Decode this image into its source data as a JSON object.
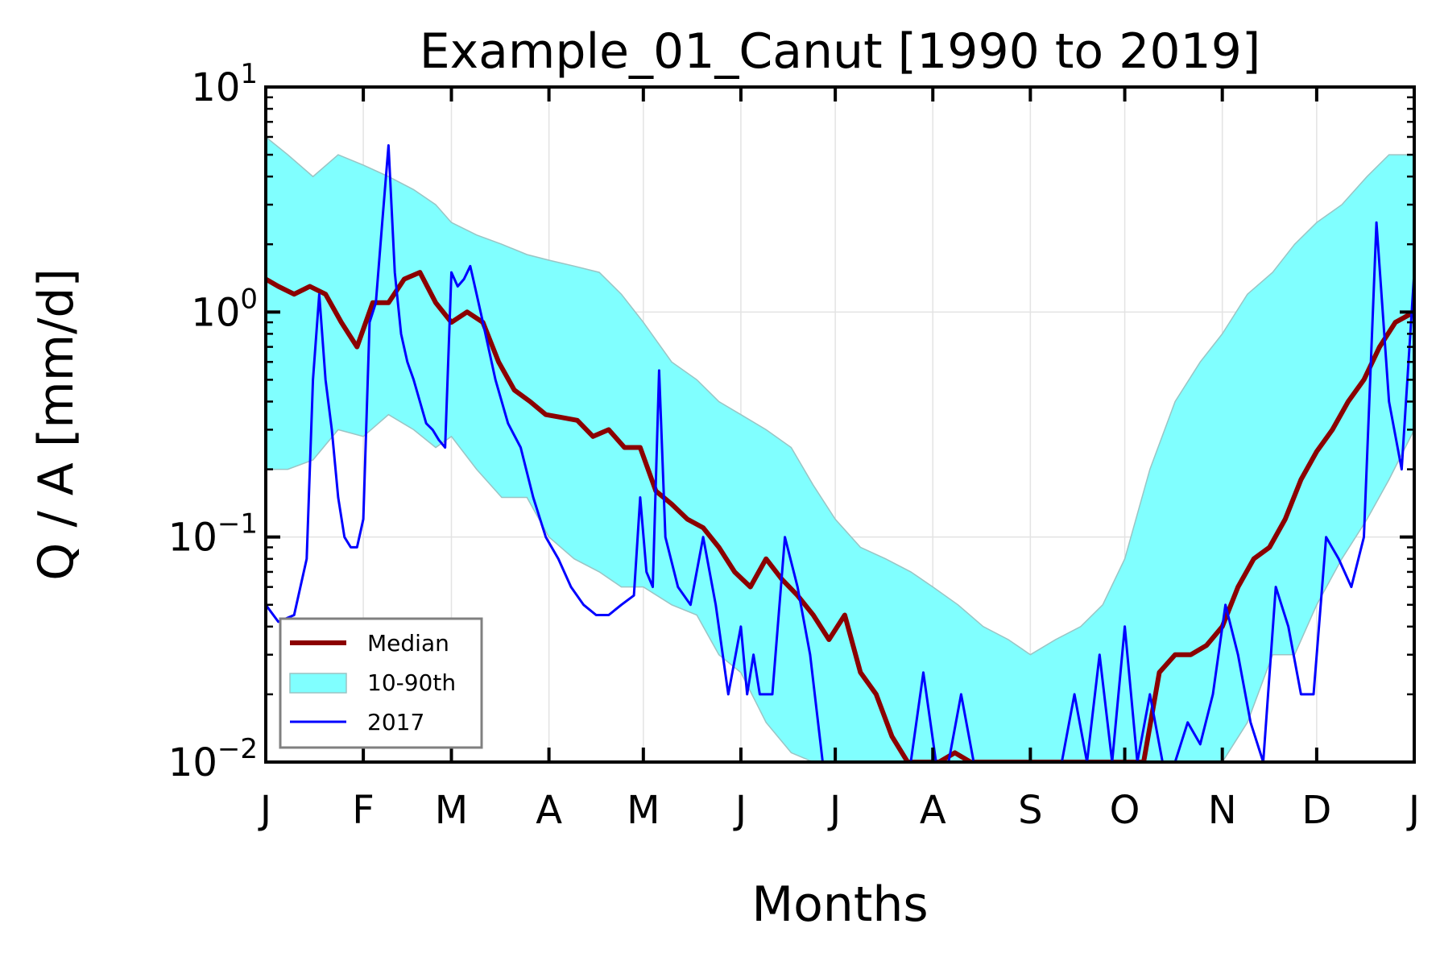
{
  "chart_data": {
    "type": "area",
    "title": "Example_01_Canut [1990 to 2019]",
    "xlabel": "Months",
    "ylabel": "Q / A [mm/d]",
    "yscale": "log",
    "ylim": [
      0.01,
      10
    ],
    "xlim": [
      1,
      366
    ],
    "grid": true,
    "legend_placement": "lower-left",
    "x_ticks": [
      {
        "label": "J",
        "day": 1
      },
      {
        "label": "F",
        "day": 32
      },
      {
        "label": "M",
        "day": 60
      },
      {
        "label": "A",
        "day": 91
      },
      {
        "label": "M",
        "day": 121
      },
      {
        "label": "J",
        "day": 152
      },
      {
        "label": "J",
        "day": 182
      },
      {
        "label": "A",
        "day": 213
      },
      {
        "label": "S",
        "day": 244
      },
      {
        "label": "O",
        "day": 274
      },
      {
        "label": "N",
        "day": 305
      },
      {
        "label": "D",
        "day": 335
      },
      {
        "label": "J",
        "day": 366
      }
    ],
    "y_ticks": [
      {
        "base": "10",
        "exp": "−2",
        "value": 0.01
      },
      {
        "base": "10",
        "exp": "−1",
        "value": 0.1
      },
      {
        "base": "10",
        "exp": "0",
        "value": 1
      },
      {
        "base": "10",
        "exp": "1",
        "value": 10
      }
    ],
    "legend": [
      {
        "label": "Median",
        "color": "#8b0000",
        "kind": "line"
      },
      {
        "label": "10-90th",
        "color": "#80ffff",
        "kind": "band"
      },
      {
        "label": "2017",
        "color": "#0000ff",
        "kind": "line"
      }
    ],
    "series": [
      {
        "name": "10-90th",
        "kind": "band",
        "color": "#80ffff",
        "edge_color": "#9ac4c4",
        "x": [
          1,
          8,
          16,
          24,
          32,
          40,
          48,
          55,
          60,
          68,
          76,
          84,
          91,
          99,
          107,
          114,
          121,
          130,
          138,
          145,
          152,
          160,
          168,
          175,
          182,
          190,
          198,
          206,
          213,
          221,
          229,
          237,
          244,
          252,
          260,
          267,
          274,
          282,
          290,
          298,
          305,
          313,
          321,
          328,
          335,
          343,
          351,
          358,
          366
        ],
        "lower": [
          0.2,
          0.2,
          0.22,
          0.3,
          0.28,
          0.35,
          0.3,
          0.25,
          0.28,
          0.2,
          0.15,
          0.15,
          0.1,
          0.08,
          0.07,
          0.06,
          0.06,
          0.05,
          0.045,
          0.03,
          0.025,
          0.015,
          0.011,
          0.01,
          0.01,
          0.01,
          0.01,
          0.01,
          0.01,
          0.01,
          0.01,
          0.01,
          0.01,
          0.01,
          0.01,
          0.01,
          0.01,
          0.01,
          0.01,
          0.01,
          0.01,
          0.015,
          0.03,
          0.03,
          0.05,
          0.08,
          0.12,
          0.18,
          0.3
        ],
        "upper": [
          6,
          5,
          4,
          5,
          4.5,
          4,
          3.5,
          3,
          2.5,
          2.2,
          2,
          1.8,
          1.7,
          1.6,
          1.5,
          1.2,
          0.9,
          0.6,
          0.5,
          0.4,
          0.35,
          0.3,
          0.25,
          0.17,
          0.12,
          0.09,
          0.08,
          0.07,
          0.06,
          0.05,
          0.04,
          0.035,
          0.03,
          0.035,
          0.04,
          0.05,
          0.08,
          0.2,
          0.4,
          0.6,
          0.8,
          1.2,
          1.5,
          2,
          2.5,
          3,
          4,
          5,
          5
        ]
      },
      {
        "name": "Median",
        "kind": "line",
        "color": "#8b0000",
        "x": [
          1,
          5,
          10,
          15,
          20,
          25,
          30,
          35,
          40,
          45,
          50,
          55,
          60,
          65,
          70,
          75,
          80,
          85,
          90,
          95,
          100,
          105,
          110,
          115,
          120,
          125,
          130,
          135,
          140,
          145,
          150,
          155,
          160,
          165,
          170,
          175,
          180,
          185,
          190,
          195,
          200,
          205,
          210,
          215,
          220,
          225,
          230,
          235,
          240,
          245,
          250,
          255,
          260,
          265,
          270,
          275,
          280,
          285,
          290,
          295,
          300,
          305,
          310,
          315,
          320,
          325,
          330,
          335,
          340,
          345,
          350,
          355,
          360,
          366
        ],
        "y": [
          1.4,
          1.3,
          1.2,
          1.3,
          1.2,
          0.9,
          0.7,
          1.1,
          1.1,
          1.4,
          1.5,
          1.1,
          0.9,
          1.0,
          0.9,
          0.6,
          0.45,
          0.4,
          0.35,
          0.34,
          0.33,
          0.28,
          0.3,
          0.25,
          0.25,
          0.16,
          0.14,
          0.12,
          0.11,
          0.09,
          0.07,
          0.06,
          0.08,
          0.065,
          0.055,
          0.045,
          0.035,
          0.045,
          0.025,
          0.02,
          0.013,
          0.01,
          0.01,
          0.01,
          0.011,
          0.01,
          0.01,
          0.01,
          0.01,
          0.01,
          0.01,
          0.01,
          0.01,
          0.01,
          0.01,
          0.01,
          0.01,
          0.025,
          0.03,
          0.03,
          0.033,
          0.04,
          0.06,
          0.08,
          0.09,
          0.12,
          0.18,
          0.24,
          0.3,
          0.4,
          0.5,
          0.7,
          0.9,
          1.0
        ]
      },
      {
        "name": "2017",
        "kind": "line",
        "color": "#0000ff",
        "x": [
          1,
          5,
          10,
          12,
          14,
          16,
          18,
          20,
          22,
          24,
          26,
          28,
          30,
          32,
          34,
          36,
          38,
          40,
          42,
          44,
          46,
          48,
          50,
          52,
          54,
          56,
          58,
          60,
          62,
          64,
          66,
          68,
          70,
          74,
          78,
          82,
          86,
          90,
          94,
          98,
          102,
          106,
          110,
          114,
          118,
          120,
          122,
          124,
          126,
          128,
          132,
          136,
          140,
          144,
          148,
          152,
          154,
          156,
          158,
          162,
          166,
          170,
          174,
          178,
          182,
          186,
          190,
          194,
          198,
          202,
          206,
          210,
          214,
          218,
          222,
          226,
          230,
          234,
          238,
          242,
          246,
          250,
          254,
          258,
          262,
          266,
          270,
          274,
          278,
          282,
          286,
          290,
          294,
          298,
          302,
          306,
          310,
          314,
          318,
          322,
          326,
          330,
          334,
          338,
          342,
          346,
          350,
          354,
          358,
          362,
          366
        ],
        "y": [
          0.05,
          0.042,
          0.045,
          0.06,
          0.08,
          0.5,
          1.2,
          0.5,
          0.3,
          0.15,
          0.1,
          0.09,
          0.09,
          0.12,
          0.9,
          1.1,
          2.5,
          5.5,
          1.5,
          0.8,
          0.6,
          0.5,
          0.4,
          0.32,
          0.3,
          0.27,
          0.25,
          1.5,
          1.3,
          1.4,
          1.6,
          1.2,
          0.9,
          0.5,
          0.32,
          0.25,
          0.15,
          0.1,
          0.08,
          0.06,
          0.05,
          0.045,
          0.045,
          0.05,
          0.055,
          0.15,
          0.07,
          0.06,
          0.55,
          0.1,
          0.06,
          0.05,
          0.1,
          0.05,
          0.02,
          0.04,
          0.02,
          0.03,
          0.02,
          0.02,
          0.1,
          0.06,
          0.03,
          0.01,
          0.01,
          0.01,
          0.01,
          0.01,
          0.01,
          0.01,
          0.01,
          0.025,
          0.01,
          0.01,
          0.02,
          0.01,
          0.01,
          0.01,
          0.01,
          0.01,
          0.01,
          0.01,
          0.01,
          0.02,
          0.01,
          0.03,
          0.01,
          0.04,
          0.01,
          0.02,
          0.01,
          0.01,
          0.015,
          0.012,
          0.02,
          0.05,
          0.03,
          0.015,
          0.01,
          0.06,
          0.04,
          0.02,
          0.02,
          0.1,
          0.08,
          0.06,
          0.1,
          2.5,
          0.4,
          0.2,
          1.5
        ]
      }
    ]
  }
}
